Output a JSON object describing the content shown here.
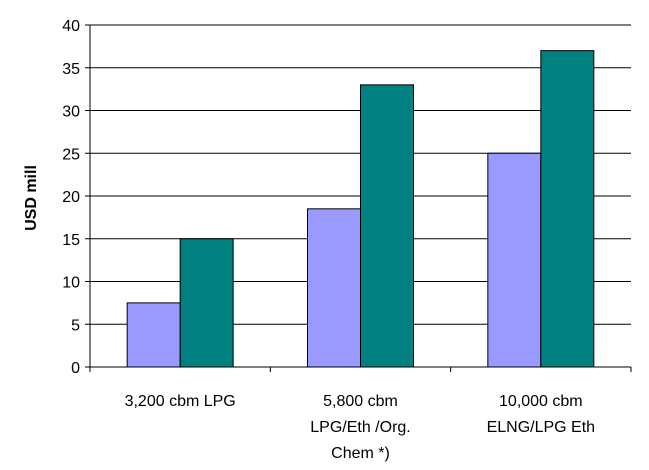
{
  "chart_data": {
    "type": "bar",
    "title": "",
    "xlabel": "",
    "ylabel": "USD mill",
    "ylim": [
      0,
      40
    ],
    "y_ticks": [
      0,
      5,
      10,
      15,
      20,
      25,
      30,
      35,
      40
    ],
    "grid": "horizontal",
    "legend": "none",
    "categories": [
      [
        "3,200 cbm LPG"
      ],
      [
        "5,800 cbm",
        "LPG/Eth /Org.",
        "Chem *)"
      ],
      [
        "10,000 cbm",
        "ELNG/LPG Eth"
      ]
    ],
    "series": [
      {
        "values": [
          7.5,
          18.5,
          25
        ],
        "color": "#9999ff"
      },
      {
        "values": [
          15,
          33,
          37
        ],
        "color": "#008080"
      }
    ]
  }
}
